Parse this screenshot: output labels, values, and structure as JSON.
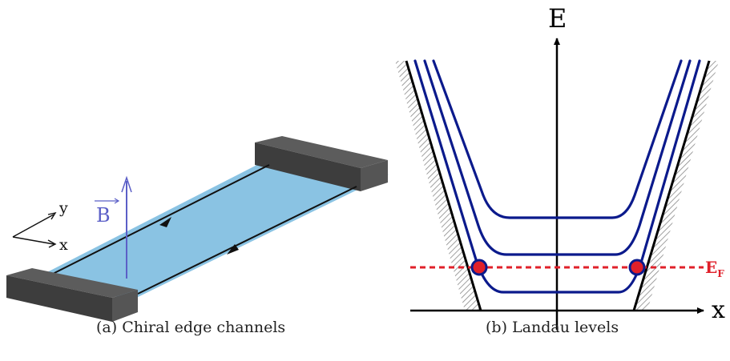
{
  "panel_a": {
    "caption": "(a)  Chiral edge channels",
    "axis_y_label": "y",
    "axis_x_label": "x",
    "field_label": "B",
    "colors": {
      "sheet": "#7dbde0",
      "contact": "#4a4a4a",
      "field": "#5b5fc7",
      "channel": "#111111"
    }
  },
  "panel_b": {
    "caption": "(b)  Landau levels",
    "energy_axis_label": "E",
    "position_axis_label": "x",
    "fermi_label": "E",
    "fermi_subscript": "F",
    "colors": {
      "levels": "#0b1a8c",
      "fermi": "#e0202a",
      "wall": "#000000"
    }
  }
}
